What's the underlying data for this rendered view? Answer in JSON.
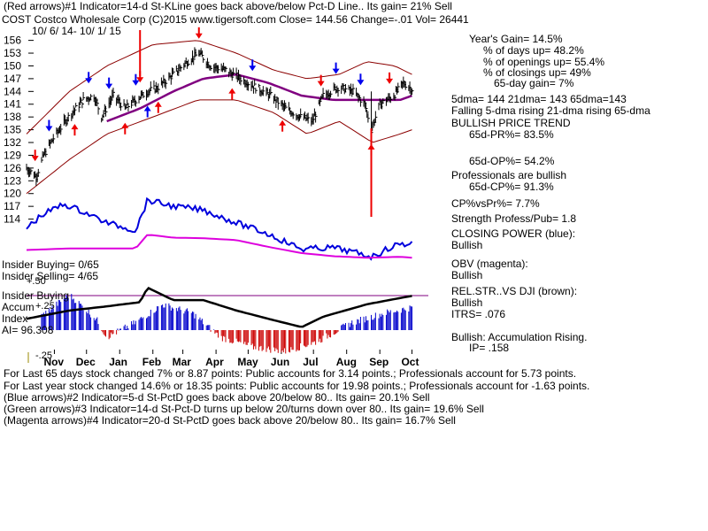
{
  "header": {
    "line1": "(Red arrows)#1 Indicator=14-d St-KLine goes back above/below Pct-D Line.. Its gain= 21% Sell",
    "line2": "COST  Costco Wholesale Corp  (C)2015 www.tigersoft.com     Close=  144.56  Change=-.01 Vol= 26441",
    "date_range": "10/ 6/ 14- 10/ 1/ 15"
  },
  "stats_panel": {
    "lines": [
      "Year's Gain= 14.5%",
      "% of days up= 48.2%",
      "% of openings up= 55.4%",
      "% of closings up= 49%",
      "65-day gain= 7%",
      "5dma= 144 21dma= 143 65dma=143",
      "Falling 5-dma rising 21-dma rising 65-dma",
      "BULLISH PRICE TREND",
      "65d-PR%= 83.5%",
      "65d-OP%= 54.2%",
      "Professionals are bullish",
      "65d-CP%= 91.3%",
      "CP%vsPr%=  7.7%",
      "Strength Profess/Pub= 1.8",
      "CLOSING POWER (blue):",
      "Bullish",
      "OBV (magenta):",
      "Bullish",
      "REL.STR..VS DJI (brown):",
      "Bullish",
      "ITRS=  .076",
      "Bullish: Accumulation Rising.",
      "IP=  .158"
    ]
  },
  "insider": {
    "buying_count": "Insider Buying= 0/65",
    "selling_count": "Insider Selling= 4/65",
    "buying_label": "Insider Buying"
  },
  "accum_panel": {
    "label_accum": "Accum",
    "label_index": "Index",
    "ai_value": "AI= 96.308",
    "tick_top": "+.50",
    "tick_mid": "+.25",
    "tick_bottom": "-.25"
  },
  "footer": {
    "line1": "For Last 65 days stock changed  7% or  8.87 points:  Public accounts for  3.14 points.;  Professionals account for  5.73 points.",
    "line2": "For Last year stock changed  14.6% or  18.35 points:  Public accounts for  19.98 points.;  Professionals account for -1.63 points.",
    "line3": "(Blue arrows)#2 Indicator=5-d St-PctD goes back above 20/below 80.. Its gain= 20.1% Sell",
    "line4": "(Green arrows)#3 Indicator=14-d St-Pct-D turns up below 20/turns down over 80.. Its gain= 19.6% Sell",
    "line5": "(Magenta arrows)#4 Indicator=20-d St-PctD goes back above 20/below 80.. Its gain= 16.7% Sell"
  },
  "colors": {
    "price_bars": "#000000",
    "bands": "#8b0000",
    "ma65": "#800080",
    "ma21_dotted": "#cc0000",
    "closing_power": "#0000dd",
    "obv": "#dd00dd",
    "accum_positive": "#0000cc",
    "accum_negative": "#cc0000",
    "red_arrow": "#ee0000",
    "blue_arrow": "#0000ee",
    "zero_line": "#800080"
  },
  "chart_data": {
    "type": "line",
    "ticker": "COST",
    "xlabel": "",
    "ylabel": "",
    "ylim": [
      111,
      158
    ],
    "y_ticks": [
      114,
      117,
      120,
      123,
      126,
      129,
      132,
      135,
      138,
      141,
      144,
      147,
      150,
      153,
      156
    ],
    "x_month_labels": [
      "Nov",
      "Dec",
      "Jan",
      "Feb",
      "Mar",
      "Apr",
      "May",
      "Jun",
      "Jul",
      "Aug",
      "Sep",
      "Oct"
    ],
    "price_close": [
      {
        "x": "2014-10-06",
        "y": 126
      },
      {
        "x": "2014-10-15",
        "y": 124
      },
      {
        "x": "2014-10-22",
        "y": 129
      },
      {
        "x": "2014-10-31",
        "y": 133
      },
      {
        "x": "2014-11-14",
        "y": 138
      },
      {
        "x": "2014-11-28",
        "y": 142
      },
      {
        "x": "2014-12-08",
        "y": 143
      },
      {
        "x": "2014-12-15",
        "y": 138
      },
      {
        "x": "2014-12-26",
        "y": 143
      },
      {
        "x": "2015-01-06",
        "y": 140
      },
      {
        "x": "2015-01-16",
        "y": 142
      },
      {
        "x": "2015-01-27",
        "y": 144
      },
      {
        "x": "2015-02-06",
        "y": 145
      },
      {
        "x": "2015-02-20",
        "y": 148
      },
      {
        "x": "2015-03-05",
        "y": 151
      },
      {
        "x": "2015-03-16",
        "y": 153
      },
      {
        "x": "2015-03-27",
        "y": 150
      },
      {
        "x": "2015-04-10",
        "y": 149
      },
      {
        "x": "2015-04-24",
        "y": 147
      },
      {
        "x": "2015-05-08",
        "y": 145
      },
      {
        "x": "2015-05-22",
        "y": 143
      },
      {
        "x": "2015-06-05",
        "y": 140
      },
      {
        "x": "2015-06-19",
        "y": 138
      },
      {
        "x": "2015-06-30",
        "y": 137
      },
      {
        "x": "2015-07-10",
        "y": 143
      },
      {
        "x": "2015-07-24",
        "y": 145
      },
      {
        "x": "2015-08-07",
        "y": 144
      },
      {
        "x": "2015-08-18",
        "y": 141
      },
      {
        "x": "2015-08-24",
        "y": 135
      },
      {
        "x": "2015-09-01",
        "y": 141
      },
      {
        "x": "2015-09-14",
        "y": 143
      },
      {
        "x": "2015-09-23",
        "y": 146
      },
      {
        "x": "2015-10-01",
        "y": 144.56
      }
    ],
    "ma65": [
      {
        "x": "2014-12-20",
        "y": 137
      },
      {
        "x": "2015-01-20",
        "y": 140
      },
      {
        "x": "2015-02-20",
        "y": 144
      },
      {
        "x": "2015-03-20",
        "y": 147
      },
      {
        "x": "2015-04-20",
        "y": 148
      },
      {
        "x": "2015-05-20",
        "y": 146
      },
      {
        "x": "2015-06-20",
        "y": 143
      },
      {
        "x": "2015-07-20",
        "y": 142
      },
      {
        "x": "2015-08-20",
        "y": 142
      },
      {
        "x": "2015-09-20",
        "y": 142
      },
      {
        "x": "2015-10-01",
        "y": 143
      }
    ],
    "upper_band": [
      {
        "x": "2014-10-06",
        "y": 134
      },
      {
        "x": "2014-11-15",
        "y": 144
      },
      {
        "x": "2014-12-20",
        "y": 150
      },
      {
        "x": "2015-02-01",
        "y": 155
      },
      {
        "x": "2015-03-15",
        "y": 156
      },
      {
        "x": "2015-04-20",
        "y": 153
      },
      {
        "x": "2015-05-25",
        "y": 149
      },
      {
        "x": "2015-06-25",
        "y": 147
      },
      {
        "x": "2015-07-25",
        "y": 148
      },
      {
        "x": "2015-08-20",
        "y": 151
      },
      {
        "x": "2015-09-15",
        "y": 150
      },
      {
        "x": "2015-10-01",
        "y": 148
      }
    ],
    "lower_band": [
      {
        "x": "2014-10-06",
        "y": 120
      },
      {
        "x": "2014-11-15",
        "y": 128
      },
      {
        "x": "2014-12-20",
        "y": 134
      },
      {
        "x": "2015-02-01",
        "y": 138
      },
      {
        "x": "2015-03-15",
        "y": 142
      },
      {
        "x": "2015-04-20",
        "y": 142
      },
      {
        "x": "2015-05-25",
        "y": 139
      },
      {
        "x": "2015-06-25",
        "y": 134
      },
      {
        "x": "2015-07-25",
        "y": 137
      },
      {
        "x": "2015-08-25",
        "y": 132
      },
      {
        "x": "2015-09-20",
        "y": 134
      },
      {
        "x": "2015-10-01",
        "y": 135
      }
    ],
    "closing_power_level": [
      {
        "x": "2014-10-06",
        "y": 0.62
      },
      {
        "x": "2014-10-20",
        "y": 0.45
      },
      {
        "x": "2014-11-10",
        "y": 0.3
      },
      {
        "x": "2014-12-01",
        "y": 0.42
      },
      {
        "x": "2014-12-20",
        "y": 0.55
      },
      {
        "x": "2015-01-16",
        "y": 0.65
      },
      {
        "x": "2015-01-27",
        "y": 0.25
      },
      {
        "x": "2015-02-20",
        "y": 0.33
      },
      {
        "x": "2015-03-20",
        "y": 0.38
      },
      {
        "x": "2015-04-20",
        "y": 0.55
      },
      {
        "x": "2015-05-20",
        "y": 0.7
      },
      {
        "x": "2015-06-20",
        "y": 0.9
      },
      {
        "x": "2015-07-20",
        "y": 0.88
      },
      {
        "x": "2015-08-25",
        "y": 1.0
      },
      {
        "x": "2015-09-15",
        "y": 0.85
      },
      {
        "x": "2015-10-01",
        "y": 0.82
      }
    ],
    "obv_level": [
      {
        "x": "2014-10-06",
        "y": 0.5
      },
      {
        "x": "2014-11-15",
        "y": 0.45
      },
      {
        "x": "2014-12-20",
        "y": 0.45
      },
      {
        "x": "2015-01-16",
        "y": 0.45
      },
      {
        "x": "2015-01-27",
        "y": 0.0
      },
      {
        "x": "2015-02-20",
        "y": 0.1
      },
      {
        "x": "2015-03-20",
        "y": 0.12
      },
      {
        "x": "2015-04-20",
        "y": 0.18
      },
      {
        "x": "2015-05-20",
        "y": 0.4
      },
      {
        "x": "2015-06-20",
        "y": 0.6
      },
      {
        "x": "2015-07-20",
        "y": 0.7
      },
      {
        "x": "2015-08-20",
        "y": 0.75
      },
      {
        "x": "2015-09-20",
        "y": 0.72
      },
      {
        "x": "2015-10-01",
        "y": 0.75
      }
    ],
    "relative_strength_level": [
      {
        "x": "2014-10-06",
        "y": 0.75
      },
      {
        "x": "2014-11-15",
        "y": 0.55
      },
      {
        "x": "2014-12-20",
        "y": 0.45
      },
      {
        "x": "2015-01-20",
        "y": 0.35
      },
      {
        "x": "2015-01-27",
        "y": 0.0
      },
      {
        "x": "2015-02-20",
        "y": 0.3
      },
      {
        "x": "2015-03-20",
        "y": 0.3
      },
      {
        "x": "2015-04-20",
        "y": 0.55
      },
      {
        "x": "2015-05-20",
        "y": 0.75
      },
      {
        "x": "2015-06-20",
        "y": 0.95
      },
      {
        "x": "2015-07-10",
        "y": 0.7
      },
      {
        "x": "2015-08-20",
        "y": 0.4
      },
      {
        "x": "2015-09-20",
        "y": 0.25
      },
      {
        "x": "2015-10-01",
        "y": 0.2
      }
    ],
    "accumulation_index": [
      {
        "x": "2014-10-20",
        "y": 0.1
      },
      {
        "x": "2014-11-15",
        "y": 0.25
      },
      {
        "x": "2014-12-10",
        "y": 0.08
      },
      {
        "x": "2014-12-20",
        "y": -0.05
      },
      {
        "x": "2015-01-15",
        "y": 0.05
      },
      {
        "x": "2015-02-10",
        "y": 0.18
      },
      {
        "x": "2015-03-10",
        "y": 0.12
      },
      {
        "x": "2015-04-05",
        "y": -0.05
      },
      {
        "x": "2015-05-05",
        "y": -0.12
      },
      {
        "x": "2015-06-05",
        "y": -0.15
      },
      {
        "x": "2015-07-05",
        "y": -0.08
      },
      {
        "x": "2015-08-05",
        "y": 0.05
      },
      {
        "x": "2015-09-05",
        "y": 0.12
      },
      {
        "x": "2015-10-01",
        "y": 0.16
      }
    ],
    "red_arrows": [
      {
        "x": "2014-10-14",
        "dir": "down"
      },
      {
        "x": "2014-11-20",
        "dir": "up"
      },
      {
        "x": "2015-01-06",
        "dir": "up"
      },
      {
        "x": "2015-01-20",
        "dir": "down"
      },
      {
        "x": "2015-02-06",
        "dir": "up"
      },
      {
        "x": "2015-03-16",
        "dir": "down"
      },
      {
        "x": "2015-04-16",
        "dir": "up"
      },
      {
        "x": "2015-06-02",
        "dir": "up"
      },
      {
        "x": "2015-07-08",
        "dir": "down"
      },
      {
        "x": "2015-08-24",
        "dir": "up"
      },
      {
        "x": "2015-09-10",
        "dir": "down"
      }
    ],
    "blue_arrows": [
      {
        "x": "2014-10-27",
        "dir": "down"
      },
      {
        "x": "2014-12-03",
        "dir": "down"
      },
      {
        "x": "2014-12-22",
        "dir": "down"
      },
      {
        "x": "2015-01-16",
        "dir": "down"
      },
      {
        "x": "2015-01-27",
        "dir": "up"
      },
      {
        "x": "2015-05-05",
        "dir": "down"
      },
      {
        "x": "2015-07-22",
        "dir": "down"
      },
      {
        "x": "2015-08-14",
        "dir": "down"
      }
    ]
  }
}
